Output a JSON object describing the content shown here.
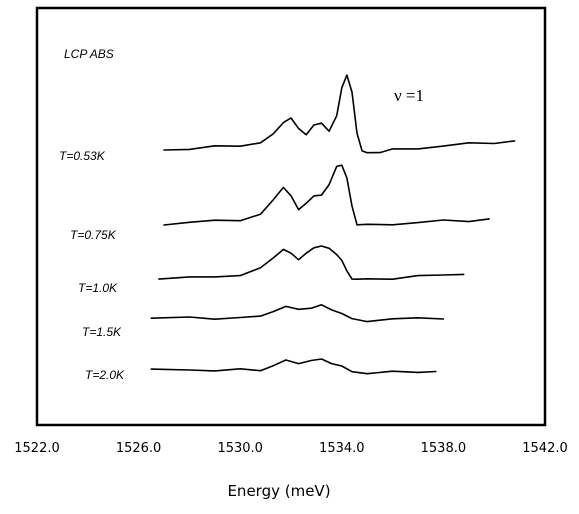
{
  "chart_data": {
    "type": "line",
    "title": "",
    "xlabel": "Energy (meV)",
    "ylabel": "",
    "xlim": [
      1522.0,
      1542.0
    ],
    "xticks": [
      "1522.0",
      "1526.0",
      "1530.0",
      "1534.0",
      "1538.0",
      "1542.0"
    ],
    "yaxis_labels_shown": false,
    "annotations": {
      "top_left": "LCP ABS",
      "top_right": "ν =1"
    },
    "series": [
      {
        "name": "T=0.53K",
        "x": [
          1527.0,
          1528.0,
          1529.0,
          1530.0,
          1530.8,
          1531.3,
          1531.7,
          1532.0,
          1532.3,
          1532.6,
          1532.9,
          1533.2,
          1533.5,
          1533.8,
          1534.0,
          1534.2,
          1534.4,
          1534.6,
          1534.8,
          1535.0,
          1535.5,
          1536.0,
          1537.0,
          1538.0,
          1539.0,
          1540.0,
          1540.8
        ],
        "y": [
          0.0,
          0.05,
          0.1,
          0.15,
          0.25,
          0.5,
          0.95,
          1.05,
          0.7,
          0.55,
          0.8,
          0.9,
          0.65,
          1.1,
          2.1,
          2.5,
          1.9,
          0.6,
          -0.05,
          -0.1,
          -0.05,
          0.0,
          0.05,
          0.15,
          0.2,
          0.25,
          0.3
        ],
        "label": "T=0.53K"
      },
      {
        "name": "T=0.75K",
        "x": [
          1527.0,
          1528.0,
          1529.0,
          1530.0,
          1530.8,
          1531.3,
          1531.7,
          1532.0,
          1532.3,
          1532.6,
          1532.9,
          1533.2,
          1533.5,
          1533.8,
          1534.0,
          1534.2,
          1534.4,
          1534.6,
          1535.0,
          1536.0,
          1537.0,
          1538.0,
          1539.0,
          1539.8
        ],
        "y": [
          0.0,
          0.05,
          0.1,
          0.15,
          0.3,
          0.8,
          1.25,
          0.9,
          0.5,
          0.7,
          0.9,
          1.0,
          1.3,
          1.9,
          2.0,
          1.5,
          0.6,
          0.0,
          -0.05,
          0.0,
          0.05,
          0.1,
          0.12,
          0.15
        ],
        "label": "T=0.75K"
      },
      {
        "name": "T=1.0K",
        "x": [
          1526.8,
          1528.0,
          1529.0,
          1530.0,
          1530.8,
          1531.3,
          1531.7,
          1532.0,
          1532.3,
          1532.6,
          1532.9,
          1533.2,
          1533.5,
          1533.8,
          1534.0,
          1534.2,
          1534.4,
          1534.6,
          1535.0,
          1536.0,
          1537.0,
          1538.0,
          1538.8
        ],
        "y": [
          0.0,
          0.0,
          0.05,
          0.1,
          0.3,
          0.7,
          0.95,
          0.8,
          0.65,
          0.8,
          1.0,
          1.1,
          0.95,
          0.8,
          0.6,
          0.2,
          0.0,
          -0.05,
          -0.05,
          0.0,
          0.05,
          0.1,
          0.15
        ],
        "label": "T=1.0K"
      },
      {
        "name": "T=1.5K",
        "x": [
          1526.5,
          1528.0,
          1529.0,
          1530.0,
          1530.8,
          1531.3,
          1531.8,
          1532.3,
          1532.8,
          1533.2,
          1533.6,
          1534.0,
          1534.4,
          1535.0,
          1536.0,
          1537.0,
          1538.0
        ],
        "y": [
          0.0,
          0.0,
          0.0,
          0.0,
          0.05,
          0.25,
          0.35,
          0.3,
          0.35,
          0.4,
          0.3,
          0.15,
          -0.05,
          -0.08,
          -0.05,
          0.0,
          0.0
        ],
        "label": "T=1.5K"
      },
      {
        "name": "T=2.0K",
        "x": [
          1526.5,
          1528.0,
          1529.0,
          1530.0,
          1530.8,
          1531.3,
          1531.8,
          1532.3,
          1532.8,
          1533.2,
          1533.6,
          1534.0,
          1534.4,
          1535.0,
          1536.0,
          1537.0,
          1537.7
        ],
        "y": [
          0.0,
          0.0,
          0.0,
          0.0,
          0.0,
          0.15,
          0.3,
          0.25,
          0.3,
          0.35,
          0.25,
          0.1,
          -0.05,
          -0.1,
          -0.08,
          -0.05,
          -0.05
        ],
        "label": "T=2.0K"
      }
    ]
  }
}
